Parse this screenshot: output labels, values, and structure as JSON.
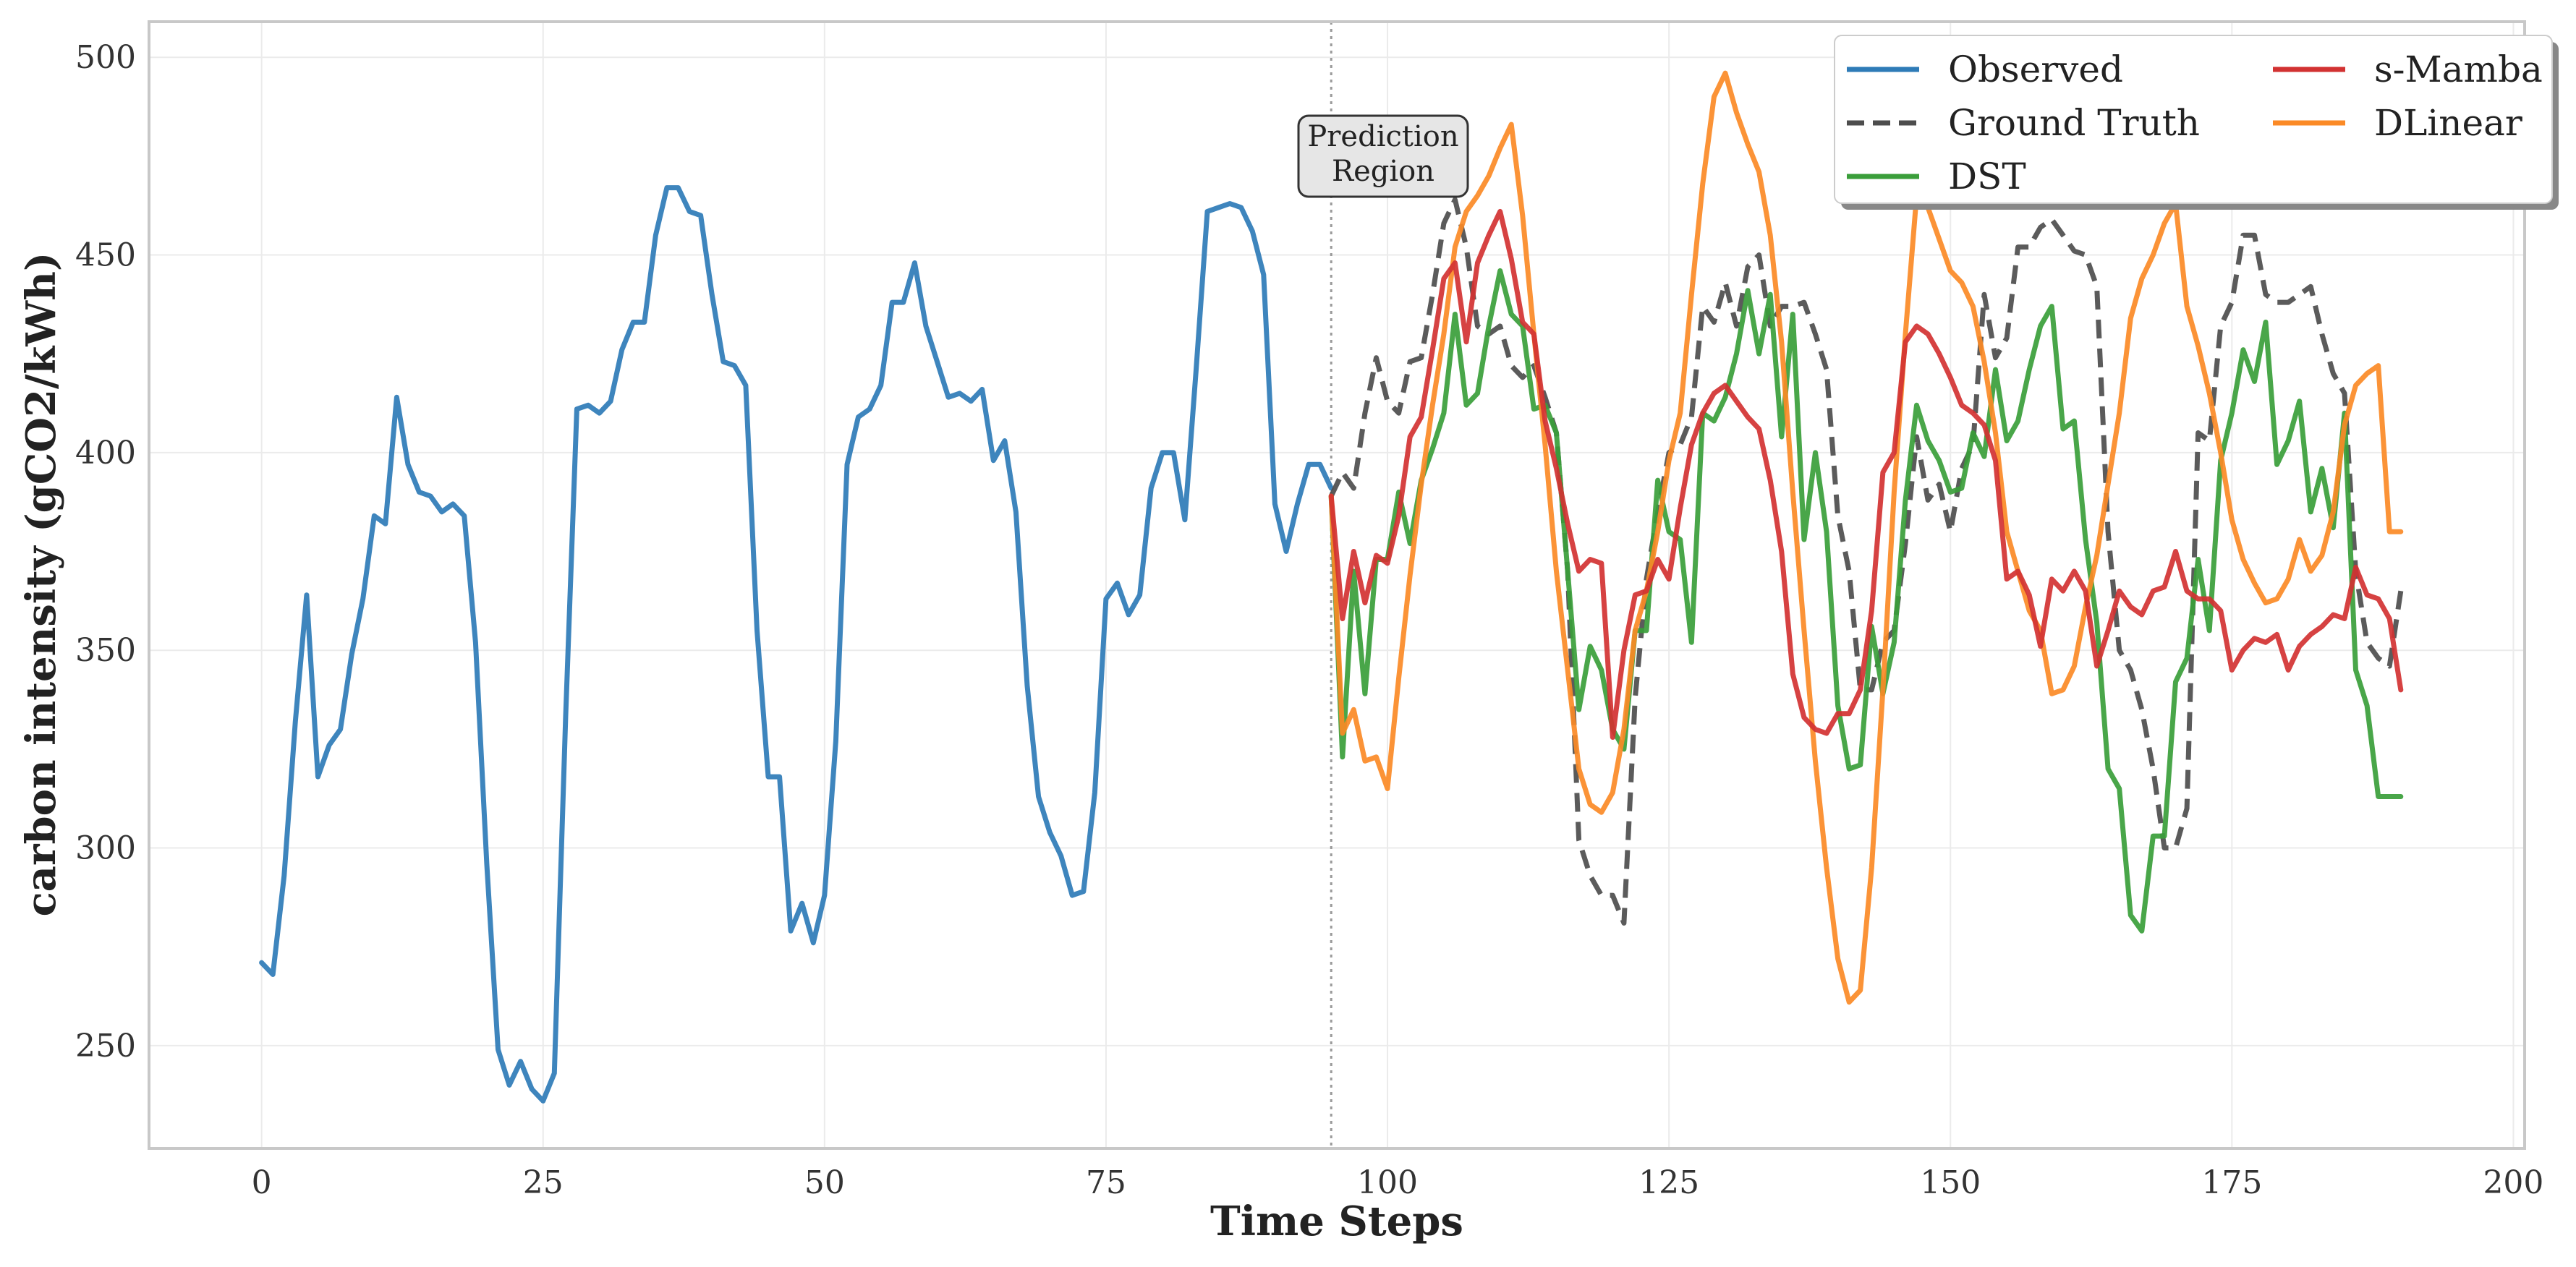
{
  "chart_data": {
    "type": "line",
    "xlabel": "Time Steps",
    "ylabel": "carbon intensity (gCO2/kWh)",
    "xlim": [
      -10,
      201
    ],
    "ylim": [
      224,
      509
    ],
    "xticks": [
      0,
      25,
      50,
      75,
      100,
      125,
      150,
      175,
      200
    ],
    "yticks": [
      250,
      300,
      350,
      400,
      450,
      500
    ],
    "grid": true,
    "legend": {
      "placement": "top-right",
      "columns": 2
    },
    "annotation": {
      "lines": [
        "Prediction",
        "Region"
      ],
      "x": 95
    },
    "series": [
      {
        "name": "Observed",
        "color": "#2e7bb7",
        "dash": "solid",
        "x_start": 0,
        "values": [
          271,
          268,
          293,
          332,
          364,
          318,
          326,
          330,
          349,
          363,
          384,
          382,
          414,
          397,
          390,
          389,
          385,
          387,
          384,
          352,
          296,
          249,
          240,
          246,
          239,
          236,
          243,
          333,
          411,
          412,
          410,
          413,
          426,
          433,
          433,
          455,
          467,
          467,
          461,
          460,
          440,
          423,
          422,
          417,
          355,
          318,
          318,
          279,
          286,
          276,
          288,
          327,
          397,
          409,
          411,
          417,
          438,
          438,
          448,
          432,
          423,
          414,
          415,
          413,
          416,
          398,
          403,
          385,
          341,
          313,
          304,
          298,
          288,
          289,
          314,
          363,
          367,
          359,
          364,
          391,
          400,
          400,
          383,
          421,
          461,
          462,
          463,
          462,
          456,
          445,
          387,
          375,
          387,
          397,
          397,
          391
        ]
      },
      {
        "name": "Ground Truth",
        "color": "#4d4d4d",
        "dash": "dashed",
        "x_start": 95,
        "values": [
          389,
          395,
          391,
          410,
          424,
          413,
          410,
          423,
          424,
          440,
          458,
          464,
          452,
          432,
          430,
          432,
          422,
          419,
          422,
          414,
          405,
          370,
          302,
          293,
          288,
          288,
          281,
          338,
          368,
          385,
          400,
          402,
          409,
          437,
          433,
          443,
          432,
          447,
          450,
          432,
          437,
          437,
          438,
          430,
          421,
          384,
          370,
          340,
          340,
          352,
          355,
          377,
          404,
          388,
          392,
          380,
          396,
          402,
          440,
          424,
          429,
          452,
          452,
          457,
          459,
          455,
          451,
          450,
          442,
          380,
          350,
          345,
          335,
          320,
          300,
          300,
          310,
          405,
          403,
          432,
          438,
          455,
          455,
          440,
          438,
          438,
          440,
          442,
          430,
          420,
          415,
          370,
          352,
          348,
          346,
          365
        ]
      },
      {
        "name": "DST",
        "color": "#3a9e3a",
        "dash": "solid",
        "x_start": 95,
        "values": [
          389,
          323,
          370,
          339,
          373,
          373,
          390,
          377,
          393,
          401,
          410,
          435,
          412,
          415,
          432,
          446,
          435,
          432,
          411,
          412,
          405,
          370,
          335,
          351,
          345,
          330,
          325,
          355,
          355,
          393,
          380,
          378,
          352,
          410,
          408,
          414,
          425,
          441,
          425,
          440,
          404,
          435,
          378,
          400,
          380,
          336,
          320,
          321,
          356,
          339,
          352,
          388,
          412,
          403,
          398,
          390,
          391,
          405,
          399,
          421,
          403,
          408,
          421,
          432,
          437,
          406,
          408,
          378,
          357,
          320,
          315,
          283,
          279,
          303,
          303,
          342,
          348,
          373,
          355,
          398,
          410,
          426,
          418,
          433,
          397,
          403,
          413,
          385,
          396,
          381,
          410,
          345,
          336,
          313,
          313,
          313
        ]
      },
      {
        "name": "s-Mamba",
        "color": "#d23232",
        "dash": "solid",
        "x_start": 95,
        "values": [
          389,
          358,
          375,
          362,
          374,
          372,
          384,
          404,
          409,
          426,
          444,
          448,
          428,
          448,
          455,
          461,
          449,
          433,
          430,
          408,
          396,
          382,
          370,
          373,
          372,
          328,
          350,
          364,
          365,
          373,
          368,
          386,
          402,
          410,
          415,
          417,
          413,
          409,
          406,
          393,
          375,
          344,
          333,
          330,
          329,
          334,
          334,
          340,
          360,
          395,
          400,
          428,
          432,
          430,
          425,
          419,
          412,
          410,
          407,
          398,
          368,
          370,
          364,
          351,
          368,
          365,
          370,
          365,
          346,
          355,
          365,
          361,
          359,
          365,
          366,
          375,
          365,
          363,
          363,
          360,
          345,
          350,
          353,
          352,
          354,
          345,
          351,
          354,
          356,
          359,
          358,
          371,
          364,
          363,
          358,
          340
        ]
      },
      {
        "name": "DLinear",
        "color": "#fb8a26",
        "dash": "solid",
        "x_start": 95,
        "values": [
          389,
          329,
          335,
          322,
          323,
          315,
          343,
          369,
          392,
          412,
          430,
          452,
          461,
          465,
          470,
          477,
          483,
          460,
          430,
          402,
          370,
          345,
          320,
          311,
          309,
          314,
          330,
          355,
          365,
          380,
          398,
          410,
          440,
          468,
          490,
          496,
          486,
          478,
          471,
          455,
          428,
          390,
          355,
          322,
          295,
          272,
          261,
          264,
          295,
          340,
          390,
          430,
          465,
          462,
          454,
          446,
          443,
          437,
          423,
          405,
          380,
          370,
          360,
          355,
          339,
          340,
          346,
          361,
          374,
          392,
          410,
          434,
          444,
          450,
          458,
          463,
          437,
          427,
          415,
          400,
          383,
          373,
          367,
          362,
          363,
          368,
          378,
          370,
          374,
          385,
          407,
          417,
          420,
          422,
          380,
          380
        ]
      }
    ]
  }
}
